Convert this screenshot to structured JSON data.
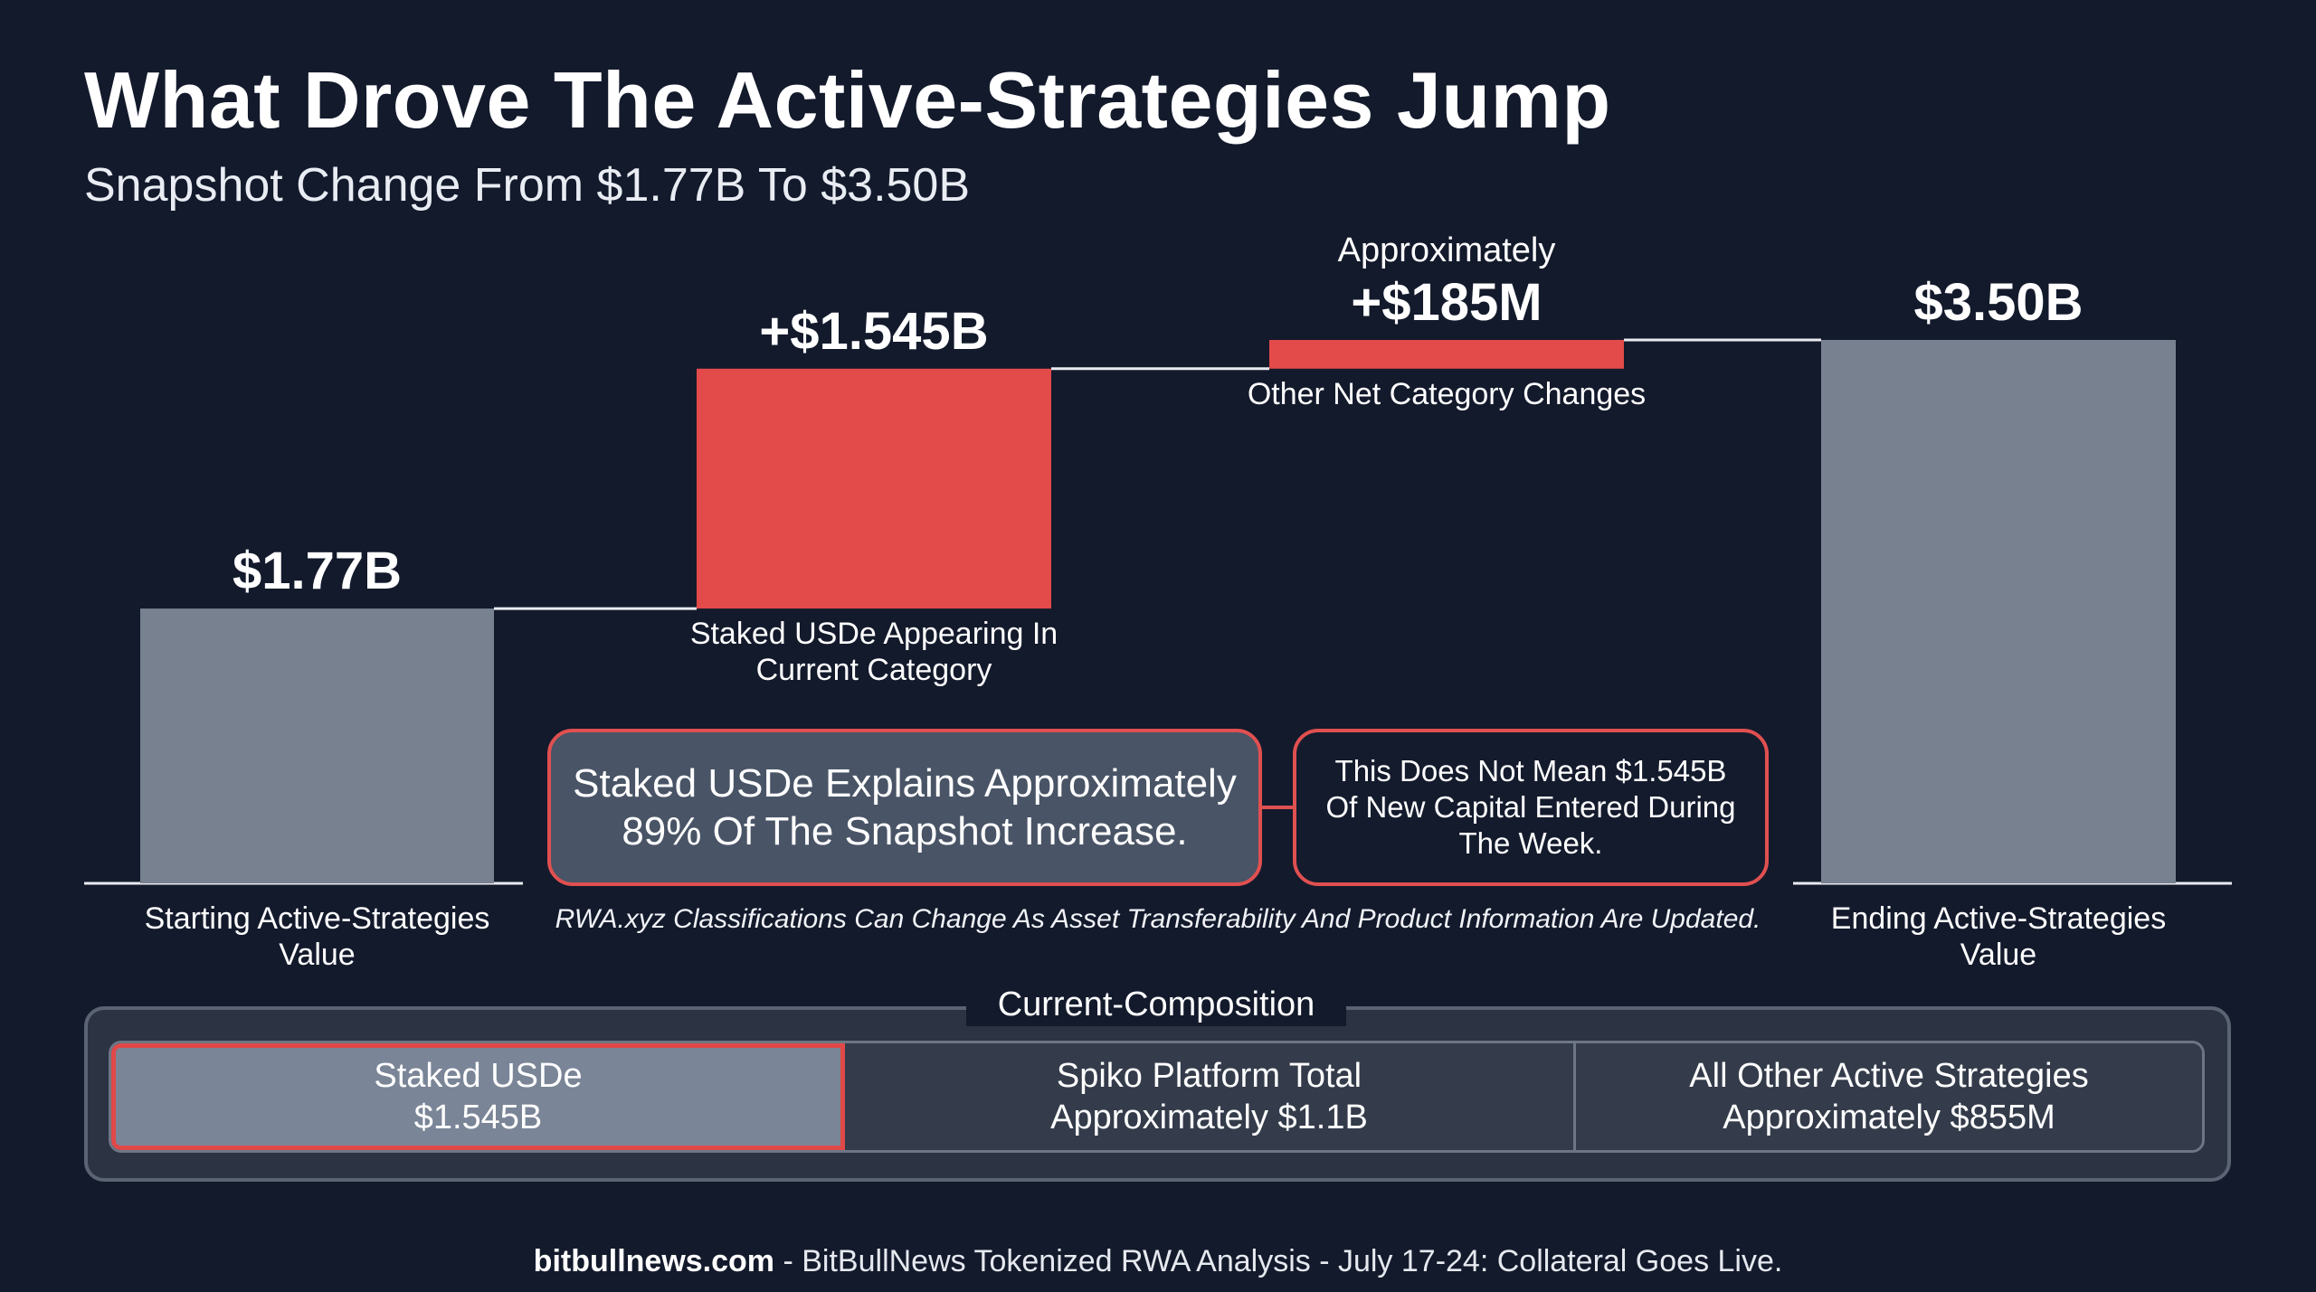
{
  "title": "What Drove The Active-Strategies Jump",
  "subtitle": "Snapshot Change From $1.77B To $3.50B",
  "chart_data": {
    "type": "bar",
    "subtype": "waterfall",
    "unit": "USD billions",
    "ylim": [
      0,
      3.5
    ],
    "steps": [
      {
        "kind": "total",
        "value": 1.77,
        "label": "$1.77B",
        "category": "Starting Active-Strategies Value",
        "color": "#77818f"
      },
      {
        "kind": "delta",
        "value": 1.545,
        "label": "+$1.545B",
        "category": "Staked USDe Appearing In Current Category",
        "color": "#e34a4a"
      },
      {
        "kind": "delta",
        "value": 0.185,
        "prefix": "Approximately",
        "label": "+$185M",
        "category": "Other Net Category Changes",
        "color": "#e34a4a"
      },
      {
        "kind": "total",
        "value": 3.5,
        "label": "$3.50B",
        "category": "Ending Active-Strategies Value",
        "color": "#77818f"
      }
    ],
    "grid": false
  },
  "callouts": {
    "main": "Staked USDe Explains Approximately 89% Of The Snapshot Increase.",
    "side": "This Does Not Mean $1.545B Of New Capital Entered During The Week."
  },
  "note": "RWA.xyz Classifications Can Change As Asset Transferability And Product Information Are Updated.",
  "composition": {
    "title": "Current-Composition",
    "segments": [
      {
        "label": "Staked USDe",
        "value": "$1.545B"
      },
      {
        "label": "Spiko Platform Total",
        "value": "Approximately $1.1B"
      },
      {
        "label": "All Other Active Strategies",
        "value": "Approximately $855M"
      }
    ]
  },
  "footer": {
    "site": "bitbullnews.com",
    "text": " - BitBullNews Tokenized RWA Analysis - July 17-24: Collateral Goes Live."
  }
}
